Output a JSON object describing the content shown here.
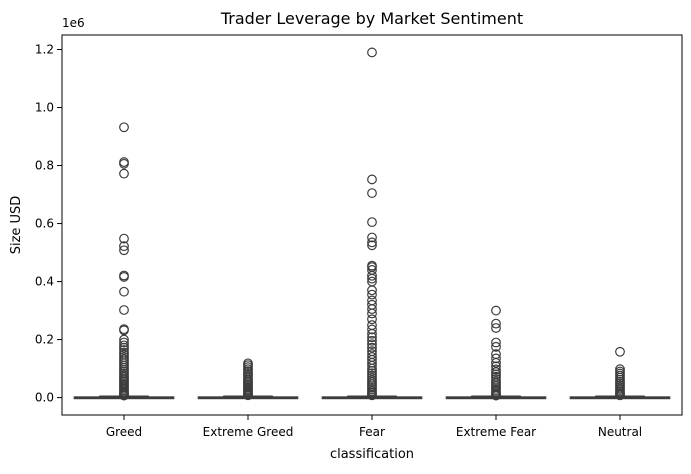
{
  "chart_data": {
    "type": "box",
    "title": "Trader Leverage by Market Sentiment",
    "xlabel": "classification",
    "ylabel": "Size USD",
    "y_offset_label": "1e6",
    "ylim": [
      -0.06,
      1.25
    ],
    "y_unit_note": "values in millions (×1e6)",
    "y_ticks": [
      {
        "value": 0.0,
        "label": "0.0"
      },
      {
        "value": 0.2,
        "label": "0.2"
      },
      {
        "value": 0.4,
        "label": "0.4"
      },
      {
        "value": 0.6,
        "label": "0.6"
      },
      {
        "value": 0.8,
        "label": "0.8"
      },
      {
        "value": 1.0,
        "label": "1.0"
      },
      {
        "value": 1.2,
        "label": "1.2"
      }
    ],
    "grid": false,
    "colors": {
      "box_edge": "#3d3d3d",
      "box_fill": "#3f74a8",
      "outlier_edge": "#3d3d3d"
    },
    "categories": [
      "Greed",
      "Extreme Greed",
      "Fear",
      "Extreme Fear",
      "Neutral"
    ],
    "boxes": [
      {
        "category": "Greed",
        "q1": 0.0,
        "median": 0.0005,
        "q3": 0.002,
        "whisker_low": 0.0,
        "whisker_high": 0.005,
        "outliers": [
          0.932,
          0.812,
          0.806,
          0.772,
          0.548,
          0.522,
          0.508,
          0.421,
          0.416,
          0.365,
          0.302,
          0.236,
          0.232,
          0.2,
          0.19,
          0.18,
          0.172,
          0.164,
          0.155,
          0.148,
          0.14,
          0.132,
          0.125,
          0.118,
          0.11,
          0.103,
          0.096,
          0.09,
          0.084,
          0.078,
          0.072,
          0.066,
          0.06,
          0.055,
          0.05,
          0.045,
          0.04,
          0.035,
          0.03,
          0.025,
          0.02,
          0.016,
          0.012,
          0.009,
          0.007
        ]
      },
      {
        "category": "Extreme Greed",
        "q1": 0.0,
        "median": 0.0005,
        "q3": 0.002,
        "whisker_low": 0.0,
        "whisker_high": 0.005,
        "outliers": [
          0.118,
          0.112,
          0.105,
          0.098,
          0.091,
          0.085,
          0.079,
          0.073,
          0.067,
          0.061,
          0.055,
          0.05,
          0.045,
          0.04,
          0.035,
          0.03,
          0.026,
          0.022,
          0.018,
          0.014,
          0.011,
          0.008
        ]
      },
      {
        "category": "Fear",
        "q1": 0.0,
        "median": 0.0005,
        "q3": 0.002,
        "whisker_low": 0.0,
        "whisker_high": 0.005,
        "outliers": [
          1.19,
          0.752,
          0.705,
          0.605,
          0.552,
          0.535,
          0.525,
          0.455,
          0.45,
          0.44,
          0.42,
          0.41,
          0.4,
          0.37,
          0.355,
          0.335,
          0.32,
          0.305,
          0.29,
          0.27,
          0.25,
          0.235,
          0.22,
          0.208,
          0.196,
          0.184,
          0.172,
          0.16,
          0.15,
          0.14,
          0.13,
          0.12,
          0.11,
          0.1,
          0.092,
          0.084,
          0.076,
          0.068,
          0.06,
          0.053,
          0.046,
          0.04,
          0.034,
          0.028,
          0.022,
          0.017,
          0.012,
          0.008
        ]
      },
      {
        "category": "Extreme Fear",
        "q1": 0.0,
        "median": 0.0005,
        "q3": 0.002,
        "whisker_low": 0.0,
        "whisker_high": 0.005,
        "outliers": [
          0.3,
          0.255,
          0.24,
          0.19,
          0.175,
          0.15,
          0.135,
          0.12,
          0.108,
          0.097,
          0.088,
          0.08,
          0.072,
          0.064,
          0.056,
          0.049,
          0.042,
          0.036,
          0.03,
          0.024,
          0.019,
          0.014,
          0.01,
          0.007
        ]
      },
      {
        "category": "Neutral",
        "q1": 0.0,
        "median": 0.0005,
        "q3": 0.002,
        "whisker_low": 0.0,
        "whisker_high": 0.005,
        "outliers": [
          0.158,
          0.098,
          0.09,
          0.083,
          0.076,
          0.069,
          0.062,
          0.055,
          0.049,
          0.043,
          0.037,
          0.031,
          0.026,
          0.021,
          0.016,
          0.012,
          0.008
        ]
      }
    ]
  }
}
